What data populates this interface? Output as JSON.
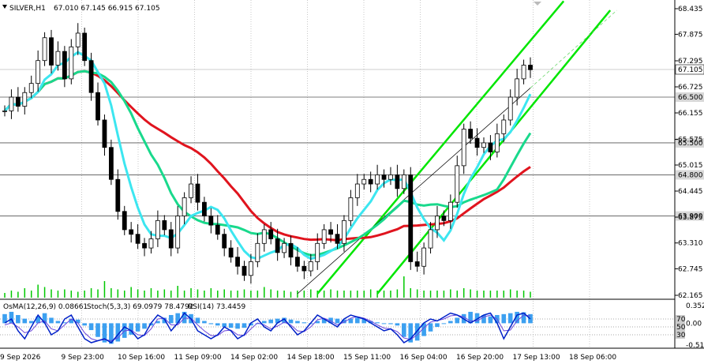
{
  "title": {
    "symbol_tf": "SILVER,H1",
    "ohlc": "67.010 67.145 66.915 67.105"
  },
  "indicator_header": {
    "osma": "OsMA(12,26,9) 0.08661",
    "stoch": "Stoch(5,3,3) 69.0979 78.4792",
    "rsi": "RSI(14) 73.4459"
  },
  "colors": {
    "background": "#ffffff",
    "grid": "#c8c8c8",
    "candle": "#000000",
    "ma_slow": "#e0141e",
    "ma_mid": "#19d98c",
    "ma_fast": "#3ce6f0",
    "channel": "#00e600",
    "volume": "#00c800",
    "osma_hist": "#3ca0f0",
    "stoch_main": "#0020c8",
    "stoch_signal": "#6c46dc"
  },
  "chart_data": {
    "type": "candlestick",
    "price_axis": {
      "ticks": [
        "68.435",
        "67.875",
        "67.295",
        "66.725",
        "66.155",
        "65.575",
        "65.015",
        "64.445",
        "63.875",
        "63.310",
        "62.745",
        "62.165"
      ],
      "ylim": [
        62.165,
        68.435
      ]
    },
    "levels": [
      {
        "price": 67.105,
        "label": "67.105",
        "kind": "current"
      },
      {
        "price": 66.5,
        "label": "66.500",
        "kind": "level"
      },
      {
        "price": 65.5,
        "label": "65.500",
        "kind": "level"
      },
      {
        "price": 64.8,
        "label": "64.800",
        "kind": "level"
      },
      {
        "price": 63.9,
        "label": "63.900",
        "kind": "level"
      }
    ],
    "x_labels": [
      "9 Sep 2026",
      "9 Sep 23:00",
      "10 Sep 16:00",
      "11 Sep 09:00",
      "14 Sep 02:00",
      "14 Sep 18:00",
      "15 Sep 11:00",
      "16 Sep 04:00",
      "16 Sep 20:00",
      "17 Sep 13:00",
      "18 Sep 06:00"
    ],
    "close_path": [
      66.2,
      66.5,
      66.3,
      66.6,
      66.8,
      67.3,
      67.8,
      67.2,
      67.5,
      66.9,
      67.6,
      67.9,
      67.3,
      66.6,
      66.0,
      65.4,
      64.7,
      64.0,
      63.6,
      63.5,
      63.3,
      63.2,
      63.4,
      63.8,
      63.6,
      63.2,
      63.9,
      64.3,
      64.6,
      64.2,
      63.9,
      63.7,
      63.5,
      63.2,
      63.0,
      62.8,
      62.6,
      62.9,
      63.3,
      63.6,
      63.4,
      63.1,
      63.3,
      63.0,
      62.8,
      62.7,
      62.9,
      63.3,
      63.6,
      63.5,
      63.3,
      63.8,
      64.3,
      64.6,
      64.7,
      64.6,
      64.8,
      64.7,
      64.8,
      64.5,
      64.8,
      62.9,
      62.8,
      63.2,
      63.6,
      63.9,
      63.8,
      64.2,
      65.0,
      65.8,
      65.6,
      65.4,
      65.5,
      65.3,
      65.7,
      66.0,
      66.5,
      66.9,
      67.2,
      67.1
    ],
    "volume_rel": [
      0.2,
      0.3,
      0.25,
      0.4,
      0.3,
      0.55,
      0.45,
      0.35,
      0.3,
      0.35,
      0.3,
      0.25,
      0.3,
      0.4,
      0.35,
      0.7,
      0.4,
      0.35,
      0.3,
      0.45,
      0.35,
      0.3,
      0.4,
      0.3,
      0.35,
      0.3,
      0.5,
      0.3,
      0.4,
      0.35,
      0.3,
      0.4,
      0.3,
      0.35,
      0.3,
      0.3,
      0.35,
      0.3,
      0.3,
      0.45,
      0.35,
      0.3,
      0.3,
      0.25,
      0.3,
      0.3,
      0.35,
      0.3,
      0.3,
      0.35,
      0.3,
      0.3,
      0.3,
      0.3,
      0.3,
      0.35,
      0.3,
      0.3,
      0.3,
      0.35,
      0.9,
      0.4,
      0.35,
      0.3,
      0.3,
      0.3,
      0.3,
      0.35,
      0.3,
      0.4,
      0.35,
      0.3,
      0.3,
      0.3,
      0.3,
      0.3,
      0.35,
      0.3,
      0.3,
      0.25
    ],
    "osma_axis": {
      "ticks": [
        "0.35252",
        "0.00",
        "-0.51222"
      ],
      "ylim": [
        -0.51222,
        0.35252
      ]
    },
    "oscillator_levels": [
      "70",
      "50",
      "30"
    ],
    "osma_values": [
      0.2,
      0.25,
      0.18,
      0.1,
      0.05,
      0.15,
      0.22,
      0.12,
      0.05,
      0.02,
      0.1,
      0.08,
      -0.05,
      -0.15,
      -0.3,
      -0.42,
      -0.45,
      -0.4,
      -0.32,
      -0.25,
      -0.18,
      -0.12,
      -0.05,
      0.05,
      0.12,
      0.18,
      0.22,
      0.25,
      0.2,
      0.12,
      0.05,
      -0.02,
      -0.05,
      -0.08,
      -0.1,
      -0.12,
      -0.1,
      -0.05,
      0.0,
      0.05,
      0.08,
      0.1,
      0.12,
      0.08,
      0.05,
      0.02,
      0.0,
      0.05,
      0.1,
      0.12,
      0.1,
      0.08,
      0.1,
      0.12,
      0.1,
      0.05,
      0.02,
      0.0,
      -0.02,
      -0.05,
      -0.3,
      -0.42,
      -0.38,
      -0.28,
      -0.18,
      -0.08,
      0.0,
      0.05,
      0.12,
      0.2,
      0.25,
      0.22,
      0.18,
      0.15,
      0.18,
      0.2,
      0.22,
      0.25,
      0.24,
      0.2
    ],
    "stoch_main": [
      60,
      70,
      40,
      20,
      50,
      80,
      60,
      30,
      40,
      70,
      80,
      50,
      20,
      10,
      15,
      20,
      10,
      30,
      50,
      40,
      20,
      30,
      60,
      80,
      70,
      40,
      60,
      85,
      70,
      40,
      30,
      20,
      30,
      50,
      40,
      20,
      30,
      60,
      70,
      50,
      40,
      60,
      70,
      50,
      30,
      40,
      60,
      80,
      70,
      60,
      50,
      70,
      80,
      75,
      70,
      60,
      50,
      40,
      45,
      30,
      10,
      20,
      40,
      60,
      70,
      65,
      75,
      85,
      80,
      70,
      60,
      70,
      80,
      85,
      60,
      20,
      50,
      80,
      85,
      70
    ],
    "stoch_signal": [
      55,
      60,
      50,
      35,
      40,
      60,
      65,
      45,
      40,
      55,
      70,
      60,
      35,
      20,
      15,
      18,
      15,
      22,
      40,
      42,
      30,
      28,
      45,
      70,
      72,
      55,
      55,
      72,
      72,
      55,
      40,
      28,
      28,
      40,
      42,
      30,
      28,
      45,
      60,
      55,
      45,
      52,
      62,
      55,
      40,
      38,
      50,
      68,
      72,
      65,
      55,
      62,
      72,
      76,
      72,
      65,
      55,
      47,
      45,
      38,
      22,
      18,
      30,
      48,
      62,
      66,
      70,
      78,
      80,
      75,
      65,
      65,
      75,
      80,
      70,
      40,
      42,
      65,
      80,
      78
    ]
  }
}
